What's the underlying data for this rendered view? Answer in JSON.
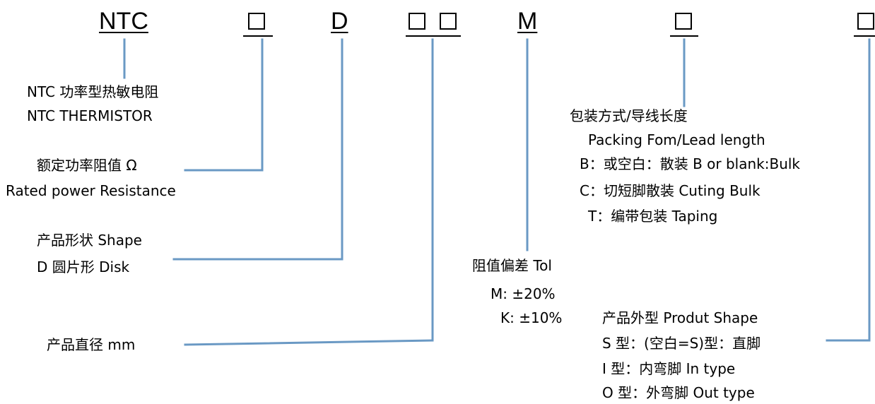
{
  "header": {
    "prefix": "NTC",
    "type_code": "D",
    "tolerance_code": "M"
  },
  "labels": {
    "ntc_cn": "NTC 功率型热敏电阻",
    "ntc_en": "NTC THERMISTOR",
    "rated_cn": "额定功率阻值 Ω",
    "rated_en": "Rated power Resistance",
    "shape_cn": "产品形状  Shape",
    "shape_disk": "D 圆片形  Disk",
    "diameter": "产品直径  mm",
    "packing_cn": "包装方式/导线长度",
    "packing_en": "Packing Fom/Lead length",
    "packing_b": "B：或空白：散装 B or blank:Bulk",
    "packing_c": "C：切短脚散装 Cuting Bulk",
    "packing_t": "T：编带包装  Taping",
    "tol_title": "阻值偏差 Tol",
    "tol_m": "M: ±20%",
    "tol_k": "K: ±10%",
    "outline_title": "产品外型  Produt Shape",
    "outline_s": "S 型：(空白=S)型：直脚",
    "outline_i": "I 型：内弯脚    In type",
    "outline_o": "O 型：外弯脚 Out type"
  }
}
